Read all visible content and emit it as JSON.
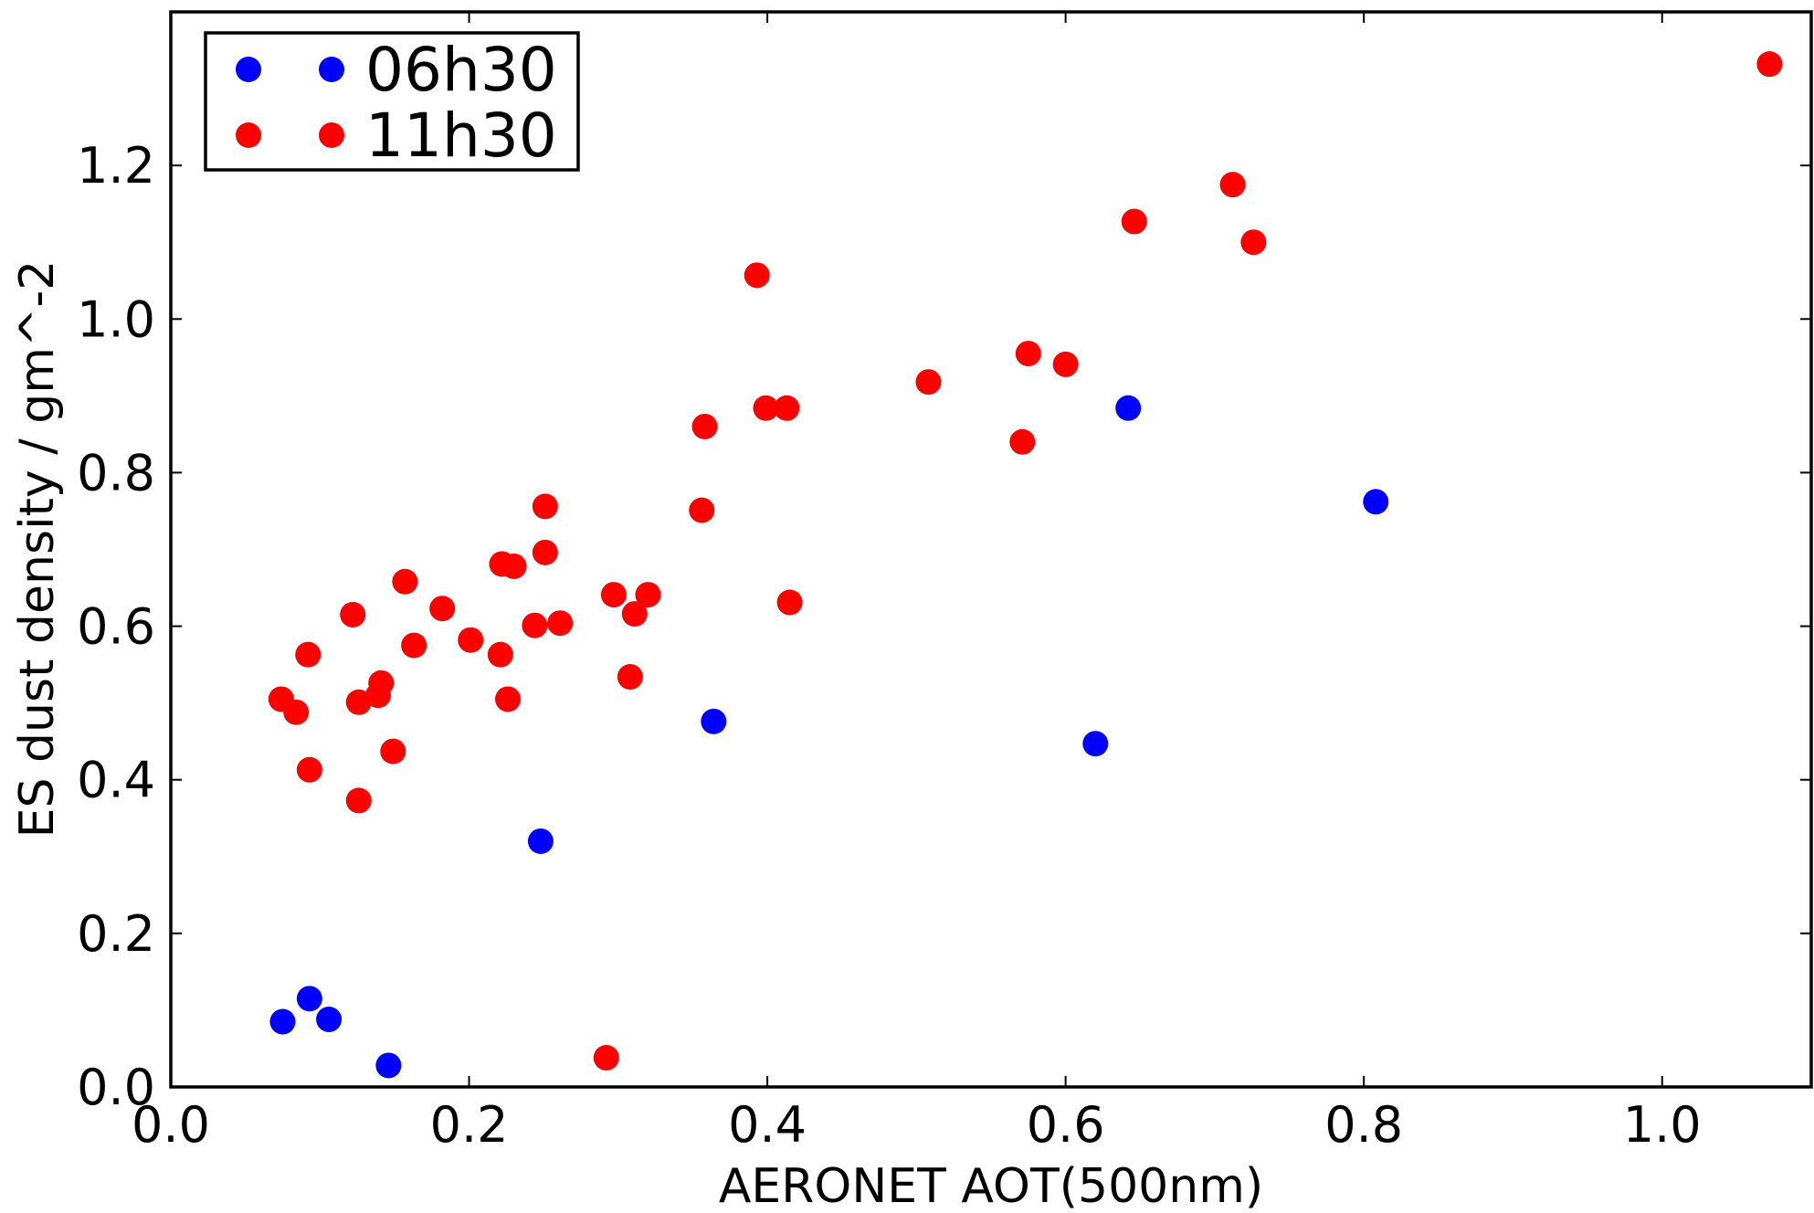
{
  "chart_data": {
    "type": "scatter",
    "xlabel": "AERONET AOT(500nm)",
    "ylabel": "ES dust density / gm^-2",
    "xlim": [
      0.0,
      1.1
    ],
    "ylim": [
      0.0,
      1.4
    ],
    "xticks": [
      "0.0",
      "0.2",
      "0.4",
      "0.6",
      "0.8",
      "1.0"
    ],
    "yticks": [
      "0.0",
      "0.2",
      "0.4",
      "0.6",
      "0.8",
      "1.0",
      "1.2"
    ],
    "grid": false,
    "legend_position": "top-left",
    "series": [
      {
        "name": "06h30",
        "color": "#0000ff",
        "points": [
          [
            0.075,
            0.085
          ],
          [
            0.093,
            0.115
          ],
          [
            0.106,
            0.088
          ],
          [
            0.146,
            0.028
          ],
          [
            0.248,
            0.32
          ],
          [
            0.364,
            0.476
          ],
          [
            0.62,
            0.447
          ],
          [
            0.642,
            0.884
          ],
          [
            0.808,
            0.762
          ]
        ]
      },
      {
        "name": "11h30",
        "color": "#ff0000",
        "points": [
          [
            0.074,
            0.505
          ],
          [
            0.084,
            0.488
          ],
          [
            0.092,
            0.563
          ],
          [
            0.093,
            0.413
          ],
          [
            0.122,
            0.615
          ],
          [
            0.126,
            0.501
          ],
          [
            0.126,
            0.373
          ],
          [
            0.139,
            0.51
          ],
          [
            0.141,
            0.526
          ],
          [
            0.149,
            0.437
          ],
          [
            0.157,
            0.658
          ],
          [
            0.163,
            0.575
          ],
          [
            0.182,
            0.623
          ],
          [
            0.201,
            0.582
          ],
          [
            0.221,
            0.563
          ],
          [
            0.222,
            0.681
          ],
          [
            0.226,
            0.505
          ],
          [
            0.23,
            0.678
          ],
          [
            0.244,
            0.601
          ],
          [
            0.251,
            0.696
          ],
          [
            0.251,
            0.756
          ],
          [
            0.261,
            0.604
          ],
          [
            0.292,
            0.038
          ],
          [
            0.297,
            0.641
          ],
          [
            0.308,
            0.534
          ],
          [
            0.311,
            0.616
          ],
          [
            0.32,
            0.641
          ],
          [
            0.356,
            0.751
          ],
          [
            0.358,
            0.86
          ],
          [
            0.393,
            1.057
          ],
          [
            0.399,
            0.884
          ],
          [
            0.413,
            0.884
          ],
          [
            0.415,
            0.631
          ],
          [
            0.508,
            0.918
          ],
          [
            0.571,
            0.84
          ],
          [
            0.575,
            0.955
          ],
          [
            0.6,
            0.941
          ],
          [
            0.646,
            1.127
          ],
          [
            0.712,
            1.175
          ],
          [
            0.726,
            1.1
          ],
          [
            1.072,
            1.332
          ]
        ]
      }
    ]
  }
}
